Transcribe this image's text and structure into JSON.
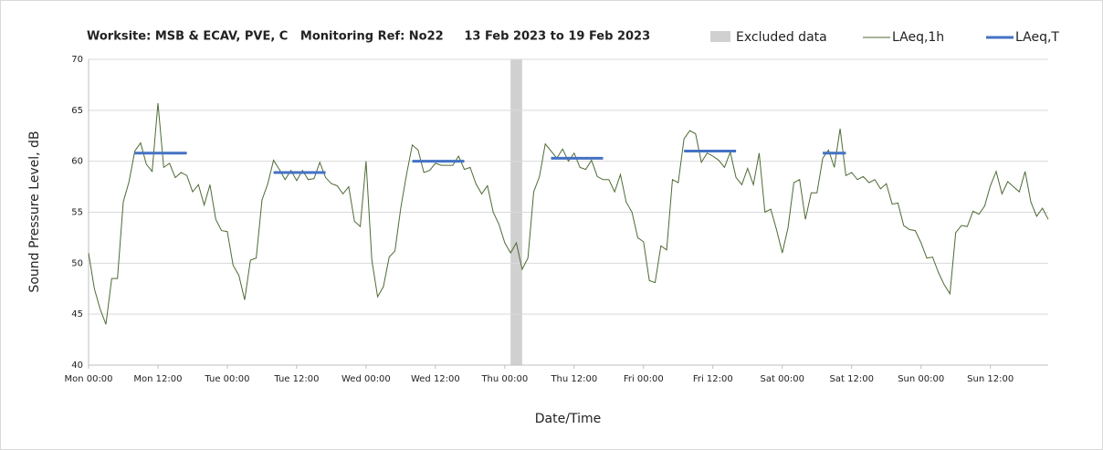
{
  "chart_data": {
    "type": "line",
    "title": "Worksite: MSB & ECAV, PVE, C   Monitoring Ref: No22     13 Feb 2023 to 19 Feb 2023",
    "xlabel": "Date/Time",
    "ylabel": "Sound Pressure Level, dB",
    "xlim": [
      0,
      166
    ],
    "xticks": [
      {
        "value": 0,
        "label": "Mon 00:00"
      },
      {
        "value": 12,
        "label": "Mon 12:00"
      },
      {
        "value": 24,
        "label": "Tue 00:00"
      },
      {
        "value": 36,
        "label": "Tue 12:00"
      },
      {
        "value": 48,
        "label": "Wed 00:00"
      },
      {
        "value": 60,
        "label": "Wed 12:00"
      },
      {
        "value": 72,
        "label": "Thu 00:00"
      },
      {
        "value": 84,
        "label": "Thu 12:00"
      },
      {
        "value": 96,
        "label": "Fri 00:00"
      },
      {
        "value": 108,
        "label": "Fri 12:00"
      },
      {
        "value": 120,
        "label": "Sat 00:00"
      },
      {
        "value": 132,
        "label": "Sat 12:00"
      },
      {
        "value": 144,
        "label": "Sun 00:00"
      },
      {
        "value": 156,
        "label": "Sun 12:00"
      }
    ],
    "ylim": [
      40,
      70
    ],
    "yticks": [
      40,
      45,
      50,
      55,
      60,
      65,
      70
    ],
    "grid": true,
    "excluded": {
      "name": "Excluded data",
      "color": "#d0d0d0",
      "start": 73,
      "end": 75
    },
    "x": [
      0,
      1,
      2,
      3,
      4,
      5,
      6,
      7,
      8,
      9,
      10,
      11,
      12,
      13,
      14,
      15,
      16,
      17,
      18,
      19,
      20,
      21,
      22,
      23,
      24,
      25,
      26,
      27,
      28,
      29,
      30,
      31,
      32,
      33,
      34,
      35,
      36,
      37,
      38,
      39,
      40,
      41,
      42,
      43,
      44,
      45,
      46,
      47,
      48,
      49,
      50,
      51,
      52,
      53,
      54,
      55,
      56,
      57,
      58,
      59,
      60,
      61,
      62,
      63,
      64,
      65,
      66,
      67,
      68,
      69,
      70,
      71,
      72,
      73,
      74,
      75,
      76,
      77,
      78,
      79,
      80,
      81,
      82,
      83,
      84,
      85,
      86,
      87,
      88,
      89,
      90,
      91,
      92,
      93,
      94,
      95,
      96,
      97,
      98,
      99,
      100,
      101,
      102,
      103,
      104,
      105,
      106,
      107,
      108,
      109,
      110,
      111,
      112,
      113,
      114,
      115,
      116,
      117,
      118,
      119,
      120,
      121,
      122,
      123,
      124,
      125,
      126,
      127,
      128,
      129,
      130,
      131,
      132,
      133,
      134,
      135,
      136,
      137,
      138,
      139,
      140,
      141,
      142,
      143,
      144,
      145,
      146,
      147,
      148,
      149,
      150,
      151,
      152,
      153,
      154,
      155,
      156,
      157,
      158,
      159,
      160,
      161,
      162,
      163,
      164,
      165,
      166
    ],
    "series": [
      {
        "name": "LAeq,1h",
        "color": "#4e6b35",
        "values": [
          51,
          47.5,
          45.5,
          44,
          48.5,
          48.5,
          56,
          58,
          61,
          61.8,
          59.7,
          59,
          65.7,
          59.4,
          59.8,
          58.4,
          58.9,
          58.6,
          57,
          57.7,
          55.7,
          57.7,
          54.3,
          53.2,
          53.1,
          49.8,
          48.8,
          46.4,
          50.3,
          50.5,
          56.2,
          57.8,
          60.1,
          59.2,
          58.2,
          59.1,
          58.1,
          59.1,
          58.2,
          58.3,
          59.9,
          58.4,
          57.8,
          57.6,
          56.8,
          57.5,
          54.1,
          53.6,
          60,
          50.3,
          46.7,
          47.7,
          50.6,
          51.2,
          55.4,
          58.7,
          61.6,
          61.1,
          58.9,
          59.1,
          59.8,
          59.6,
          59.6,
          59.6,
          60.5,
          59.2,
          59.4,
          57.8,
          56.8,
          57.6,
          55,
          53.8,
          52,
          51,
          52,
          49.4,
          50.5,
          57,
          58.5,
          61.7,
          61,
          60.3,
          61.2,
          60,
          60.8,
          59.4,
          59.2,
          60.1,
          58.5,
          58.2,
          58.2,
          57,
          58.7,
          56,
          55,
          52.5,
          52.1,
          48.3,
          48.1,
          51.7,
          51.3,
          58.2,
          57.9,
          62.2,
          63,
          62.7,
          59.9,
          60.8,
          60.5,
          60.1,
          59.4,
          60.9,
          58.4,
          57.7,
          59.3,
          57.7,
          60.8,
          55,
          55.3,
          53.3,
          51,
          53.5,
          57.9,
          58.2,
          54.3,
          56.9,
          56.9,
          60.3,
          61.1,
          59.4,
          63.2,
          58.6,
          58.9,
          58.2,
          58.5,
          57.9,
          58.2,
          57.3,
          57.8,
          55.8,
          55.9,
          53.7,
          53.3,
          53.2,
          52,
          50.5,
          50.6,
          49.1,
          47.9,
          47,
          53,
          53.7,
          53.6,
          55.1,
          54.8,
          55.6,
          57.6,
          59,
          56.8,
          58,
          57.5,
          57,
          59,
          56,
          54.6,
          55.4,
          54.3
        ]
      },
      {
        "name": "LAeq,T",
        "color": "#4472c4",
        "segments": [
          {
            "start": 8,
            "end": 17,
            "value": 60.8
          },
          {
            "start": 32,
            "end": 41,
            "value": 58.9
          },
          {
            "start": 56,
            "end": 65,
            "value": 60.0
          },
          {
            "start": 80,
            "end": 89,
            "value": 60.3
          },
          {
            "start": 103,
            "end": 112,
            "value": 61.0
          },
          {
            "start": 127,
            "end": 131,
            "value": 60.8
          }
        ]
      }
    ]
  }
}
